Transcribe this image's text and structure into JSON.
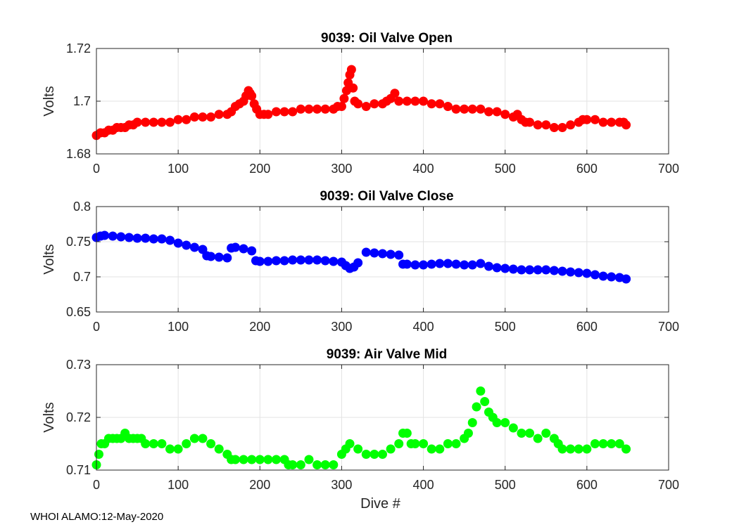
{
  "footer": "WHOI ALAMO:12-May-2020",
  "chart_data": [
    {
      "type": "scatter",
      "title": "9039: Oil Valve Open",
      "xlabel": "",
      "ylabel": "Volts",
      "xlim": [
        0,
        700
      ],
      "ylim": [
        1.68,
        1.72
      ],
      "xticks": [
        "0",
        "100",
        "200",
        "300",
        "400",
        "500",
        "600",
        "700"
      ],
      "yticks": [
        "1.68",
        "1.7",
        "1.72"
      ],
      "color": "#ff0000",
      "grid": true,
      "x": [
        0,
        5,
        10,
        15,
        20,
        25,
        30,
        35,
        40,
        45,
        50,
        60,
        70,
        80,
        90,
        100,
        110,
        120,
        130,
        140,
        150,
        160,
        165,
        170,
        175,
        180,
        183,
        186,
        188,
        190,
        193,
        196,
        200,
        205,
        210,
        220,
        230,
        240,
        250,
        260,
        270,
        280,
        290,
        295,
        300,
        303,
        306,
        308,
        310,
        312,
        314,
        316,
        320,
        330,
        340,
        350,
        355,
        360,
        365,
        370,
        380,
        390,
        400,
        410,
        420,
        430,
        440,
        450,
        460,
        470,
        480,
        490,
        500,
        510,
        515,
        520,
        525,
        530,
        540,
        550,
        560,
        570,
        580,
        590,
        595,
        600,
        610,
        620,
        630,
        640,
        645,
        648
      ],
      "y": [
        1.687,
        1.688,
        1.688,
        1.689,
        1.689,
        1.69,
        1.69,
        1.69,
        1.691,
        1.691,
        1.692,
        1.692,
        1.692,
        1.692,
        1.692,
        1.693,
        1.693,
        1.694,
        1.694,
        1.694,
        1.695,
        1.695,
        1.696,
        1.698,
        1.699,
        1.7,
        1.702,
        1.704,
        1.703,
        1.702,
        1.699,
        1.697,
        1.695,
        1.695,
        1.695,
        1.696,
        1.696,
        1.696,
        1.697,
        1.697,
        1.697,
        1.697,
        1.697,
        1.698,
        1.698,
        1.701,
        1.704,
        1.707,
        1.71,
        1.712,
        1.705,
        1.7,
        1.699,
        1.698,
        1.699,
        1.699,
        1.7,
        1.701,
        1.703,
        1.7,
        1.7,
        1.7,
        1.7,
        1.699,
        1.699,
        1.698,
        1.697,
        1.697,
        1.697,
        1.697,
        1.696,
        1.696,
        1.695,
        1.694,
        1.695,
        1.693,
        1.692,
        1.692,
        1.691,
        1.691,
        1.69,
        1.69,
        1.691,
        1.692,
        1.693,
        1.693,
        1.693,
        1.692,
        1.692,
        1.692,
        1.692,
        1.691
      ]
    },
    {
      "type": "scatter",
      "title": "9039: Oil Valve Close",
      "xlabel": "",
      "ylabel": "Volts",
      "xlim": [
        0,
        700
      ],
      "ylim": [
        0.65,
        0.8
      ],
      "xticks": [
        "0",
        "100",
        "200",
        "300",
        "400",
        "500",
        "600",
        "700"
      ],
      "yticks": [
        "0.65",
        "0.7",
        "0.75",
        "0.8"
      ],
      "color": "#0000ff",
      "grid": true,
      "x": [
        0,
        5,
        10,
        20,
        30,
        40,
        50,
        60,
        70,
        80,
        90,
        100,
        110,
        120,
        130,
        135,
        140,
        150,
        160,
        165,
        170,
        180,
        190,
        195,
        200,
        210,
        220,
        230,
        240,
        250,
        260,
        270,
        280,
        290,
        300,
        305,
        310,
        315,
        320,
        330,
        340,
        350,
        360,
        370,
        375,
        380,
        390,
        400,
        410,
        420,
        430,
        440,
        450,
        460,
        470,
        480,
        490,
        500,
        510,
        520,
        530,
        540,
        550,
        560,
        570,
        580,
        590,
        600,
        610,
        620,
        630,
        640,
        648
      ],
      "y": [
        0.756,
        0.758,
        0.759,
        0.758,
        0.757,
        0.756,
        0.755,
        0.755,
        0.754,
        0.754,
        0.752,
        0.748,
        0.745,
        0.742,
        0.739,
        0.73,
        0.729,
        0.728,
        0.727,
        0.741,
        0.742,
        0.74,
        0.737,
        0.723,
        0.722,
        0.722,
        0.723,
        0.723,
        0.724,
        0.724,
        0.724,
        0.724,
        0.723,
        0.722,
        0.721,
        0.716,
        0.712,
        0.714,
        0.72,
        0.735,
        0.734,
        0.733,
        0.732,
        0.731,
        0.718,
        0.718,
        0.717,
        0.717,
        0.718,
        0.719,
        0.719,
        0.718,
        0.717,
        0.717,
        0.719,
        0.715,
        0.713,
        0.712,
        0.711,
        0.71,
        0.71,
        0.71,
        0.71,
        0.709,
        0.708,
        0.707,
        0.706,
        0.705,
        0.703,
        0.701,
        0.7,
        0.699,
        0.697
      ]
    },
    {
      "type": "scatter",
      "title": "9039: Air Valve Mid",
      "xlabel": "Dive #",
      "ylabel": "Volts",
      "xlim": [
        0,
        700
      ],
      "ylim": [
        0.71,
        0.73
      ],
      "xticks": [
        "0",
        "100",
        "200",
        "300",
        "400",
        "500",
        "600",
        "700"
      ],
      "yticks": [
        "0.71",
        "0.72",
        "0.73"
      ],
      "color": "#00ff00",
      "grid": true,
      "x": [
        0,
        3,
        6,
        10,
        15,
        20,
        25,
        30,
        35,
        40,
        45,
        50,
        55,
        60,
        70,
        80,
        90,
        100,
        110,
        120,
        130,
        140,
        150,
        160,
        165,
        170,
        180,
        190,
        200,
        210,
        220,
        230,
        235,
        240,
        250,
        260,
        270,
        280,
        290,
        300,
        305,
        310,
        320,
        330,
        340,
        350,
        360,
        370,
        375,
        380,
        385,
        390,
        400,
        410,
        420,
        430,
        440,
        450,
        455,
        460,
        465,
        470,
        475,
        480,
        485,
        490,
        500,
        510,
        520,
        530,
        540,
        550,
        560,
        565,
        570,
        580,
        590,
        600,
        610,
        620,
        630,
        640,
        648
      ],
      "y": [
        0.711,
        0.713,
        0.715,
        0.715,
        0.716,
        0.716,
        0.716,
        0.716,
        0.717,
        0.716,
        0.716,
        0.716,
        0.716,
        0.715,
        0.715,
        0.715,
        0.714,
        0.714,
        0.715,
        0.716,
        0.716,
        0.715,
        0.714,
        0.713,
        0.712,
        0.712,
        0.712,
        0.712,
        0.712,
        0.712,
        0.712,
        0.712,
        0.711,
        0.711,
        0.711,
        0.712,
        0.711,
        0.711,
        0.711,
        0.713,
        0.714,
        0.715,
        0.714,
        0.713,
        0.713,
        0.713,
        0.714,
        0.715,
        0.717,
        0.717,
        0.715,
        0.715,
        0.715,
        0.714,
        0.714,
        0.715,
        0.715,
        0.716,
        0.717,
        0.719,
        0.722,
        0.725,
        0.723,
        0.721,
        0.72,
        0.719,
        0.719,
        0.718,
        0.717,
        0.717,
        0.716,
        0.717,
        0.716,
        0.715,
        0.714,
        0.714,
        0.714,
        0.714,
        0.715,
        0.715,
        0.715,
        0.715,
        0.714
      ]
    }
  ]
}
